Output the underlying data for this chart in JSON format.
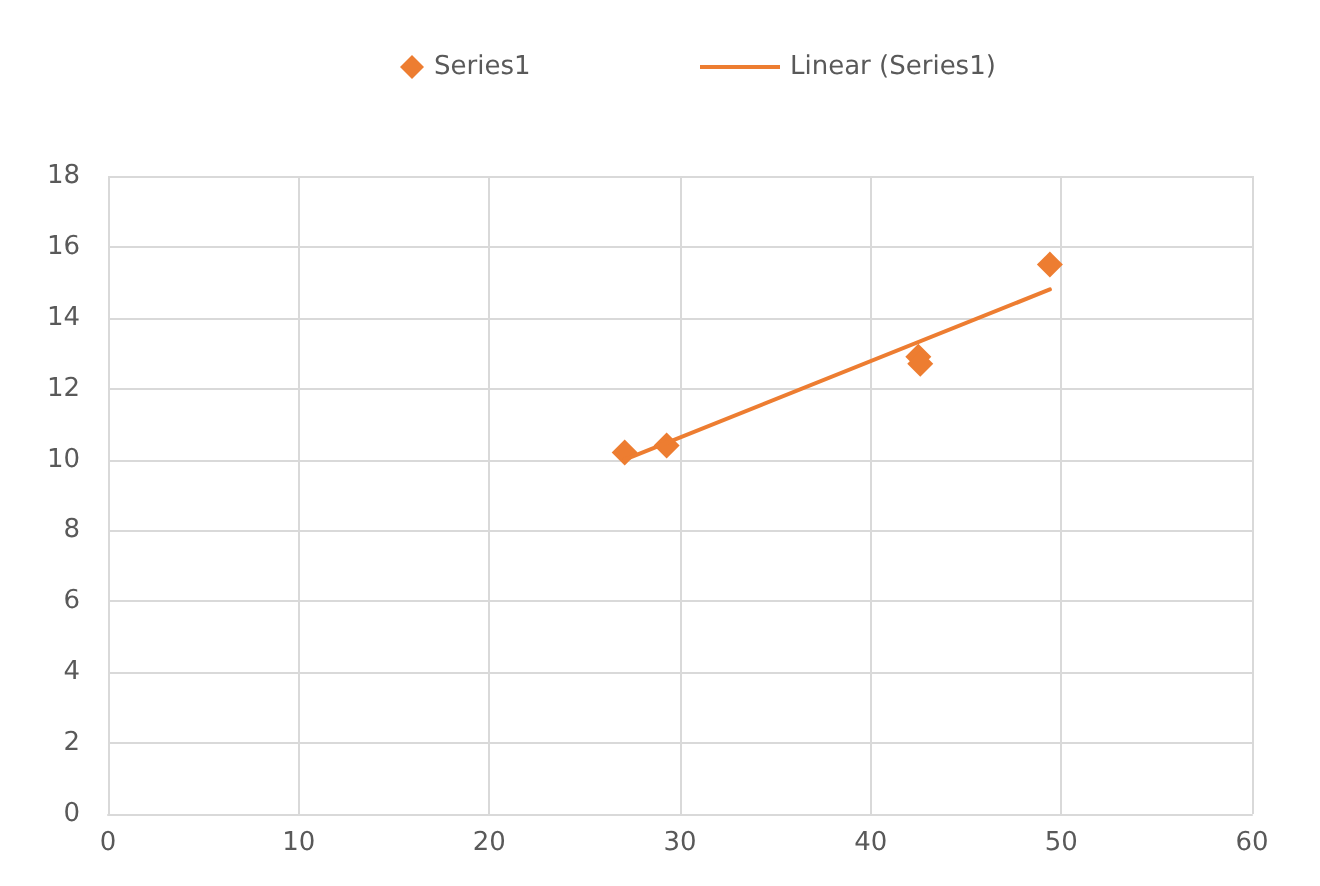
{
  "chart_data": {
    "type": "scatter",
    "series": [
      {
        "name": "Series1",
        "color": "#ed7d31",
        "marker": "diamond",
        "x": [
          27.1,
          29.3,
          42.5,
          42.6,
          49.4
        ],
        "values": [
          10.2,
          10.4,
          12.9,
          12.7,
          15.5
        ]
      },
      {
        "name": "Linear (Series1)",
        "type": "line",
        "color": "#ed7d31",
        "marker": "none",
        "line_style": "solid",
        "x": [
          27.1,
          49.4
        ],
        "values": [
          10.0,
          14.8
        ]
      }
    ],
    "xlim": [
      0,
      60
    ],
    "xticks": [
      0,
      10,
      20,
      30,
      40,
      50,
      60
    ],
    "ylim": [
      0,
      18
    ],
    "yticks": [
      0,
      2,
      4,
      6,
      8,
      10,
      12,
      14,
      16,
      18
    ],
    "grid": true,
    "legend": "top"
  }
}
